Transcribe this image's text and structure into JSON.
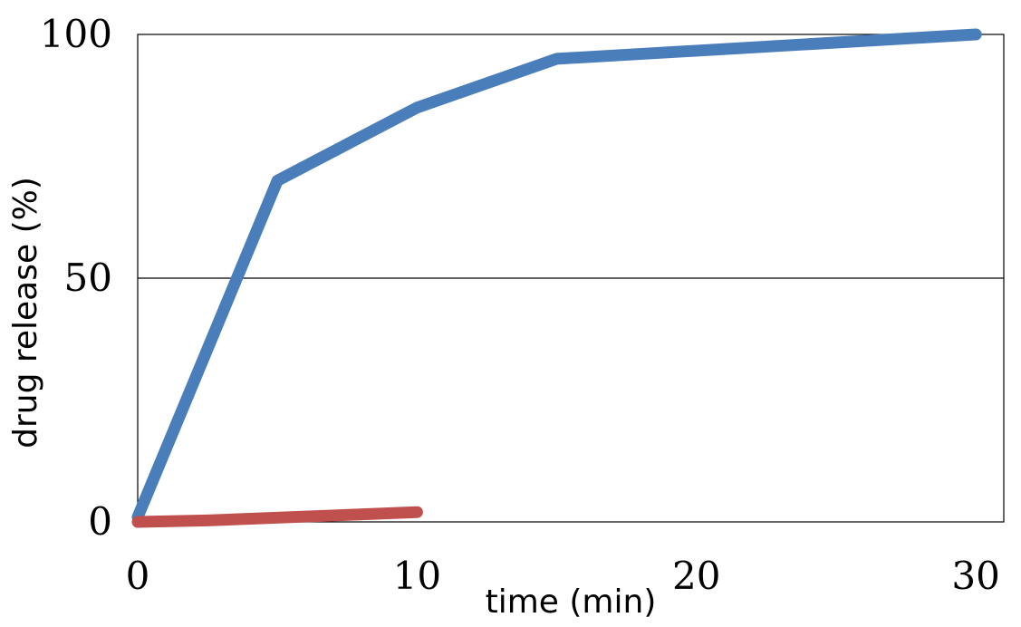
{
  "chart_data": {
    "type": "line",
    "title": "",
    "xlabel": "time (min)",
    "ylabel": "drug release (%)",
    "xlim": [
      0,
      31
    ],
    "ylim": [
      0,
      100
    ],
    "x_ticks": [
      0,
      10,
      20,
      30
    ],
    "y_ticks": [
      0,
      50,
      100
    ],
    "grid": {
      "horizontal": true,
      "vertical": false
    },
    "legend": "none",
    "series": [
      {
        "color": "#4a7ebb",
        "points": [
          {
            "x": 0,
            "y": 1
          },
          {
            "x": 5,
            "y": 70
          },
          {
            "x": 10,
            "y": 85
          },
          {
            "x": 15,
            "y": 95
          },
          {
            "x": 30,
            "y": 100
          }
        ]
      },
      {
        "color": "#c0504d",
        "points": [
          {
            "x": 0,
            "y": 0
          },
          {
            "x": 2.5,
            "y": 0.3
          },
          {
            "x": 10,
            "y": 2
          }
        ]
      }
    ]
  }
}
